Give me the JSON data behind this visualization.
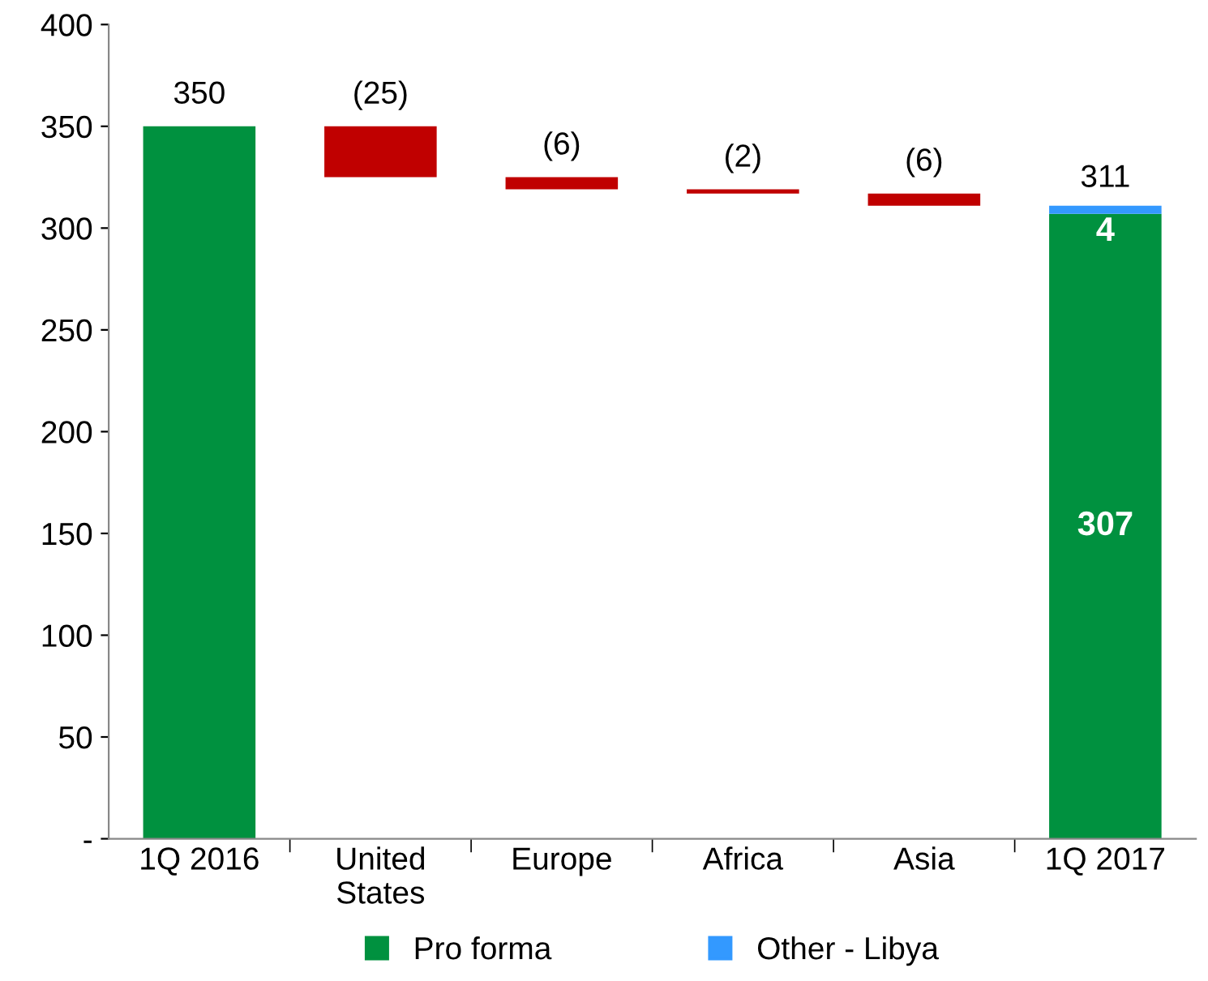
{
  "chart_data": {
    "type": "bar",
    "stacked": true,
    "categories": [
      "1Q 2016",
      "United\nStates",
      "Europe",
      "Africa",
      "Asia",
      "1Q 2017"
    ],
    "series": [
      {
        "name": "Pro forma",
        "color": "#00913f",
        "values": [
          350,
          null,
          null,
          null,
          null,
          307
        ],
        "value_labels": [
          "350",
          null,
          null,
          null,
          null,
          "307"
        ]
      },
      {
        "name": "Other - Libya",
        "color": "#3399ff",
        "values": [
          null,
          null,
          null,
          null,
          null,
          4
        ],
        "value_labels": [
          null,
          null,
          null,
          null,
          null,
          "4"
        ]
      },
      {
        "color": "#c00000",
        "values": [
          null,
          -25,
          -6,
          -2,
          -6,
          null
        ],
        "base": [
          null,
          350,
          325,
          319,
          317,
          null
        ],
        "value_labels": [
          null,
          "(25)",
          "(6)",
          "(2)",
          "(6)",
          null
        ]
      }
    ],
    "totals": [
      null,
      null,
      null,
      null,
      null,
      "311"
    ],
    "ylim": [
      0,
      400
    ],
    "yticks": [
      {
        "value": 0,
        "label": "-"
      },
      50,
      100,
      150,
      200,
      250,
      300,
      350,
      400
    ],
    "grid": false,
    "legend": "bottom"
  }
}
